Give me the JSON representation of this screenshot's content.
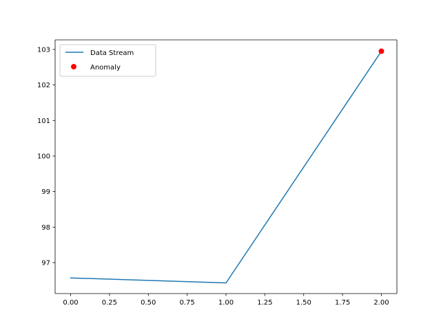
{
  "chart_data": {
    "type": "line",
    "title": "",
    "xlabel": "",
    "ylabel": "",
    "xlim": [
      -0.1,
      2.1
    ],
    "ylim": [
      96.13,
      103.27
    ],
    "grid": false,
    "legend_placement": "upper-left",
    "x_ticks": [
      "0.00",
      "0.25",
      "0.50",
      "0.75",
      "1.00",
      "1.25",
      "1.50",
      "1.75",
      "2.00"
    ],
    "y_ticks": [
      "97",
      "98",
      "99",
      "100",
      "101",
      "102",
      "103"
    ],
    "series": [
      {
        "name": "Data Stream",
        "kind": "line",
        "color": "#1f77b4",
        "x": [
          0,
          1,
          2
        ],
        "y": [
          96.57,
          96.43,
          102.95
        ]
      },
      {
        "name": "Anomaly",
        "kind": "scatter",
        "color": "#ff0000",
        "x": [
          2
        ],
        "y": [
          102.95
        ]
      }
    ]
  }
}
